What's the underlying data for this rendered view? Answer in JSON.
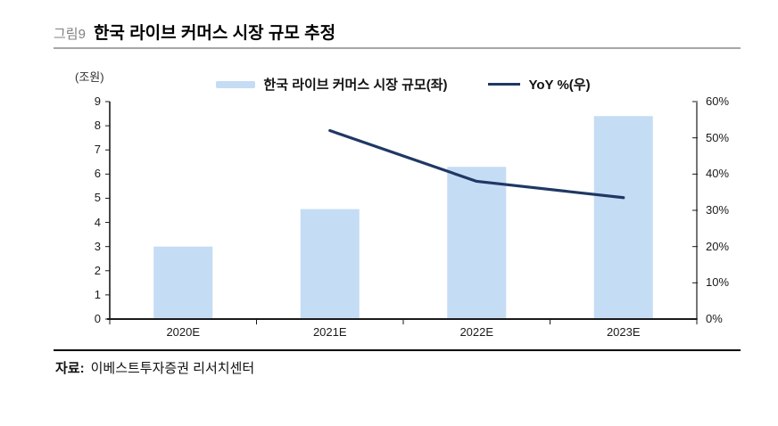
{
  "header": {
    "tag": "그림9",
    "title": "한국 라이브 커머스 시장 규모 추정"
  },
  "footer": {
    "source_prefix": "자료:",
    "source_text": "이베스트투자증권 리서치센터"
  },
  "colors": {
    "bar": "#C5DCF5",
    "line": "#1F3864",
    "title_rule": "#A6A6A6",
    "bottom_rule": "#000000",
    "axis": "#1A1A1A",
    "figure_tag_text": "#808080"
  },
  "chart_data": {
    "type": "combo",
    "title": "한국 라이브 커머스 시장 규모 추정",
    "categories": [
      "2020E",
      "2021E",
      "2022E",
      "2023E"
    ],
    "series": [
      {
        "name": "한국 라이브 커머스 시장 규모(좌)",
        "type": "bar",
        "axis": "left",
        "color": "#C5DCF5",
        "values": [
          3.0,
          4.55,
          6.3,
          8.4
        ]
      },
      {
        "name": "YoY %(우)",
        "type": "line",
        "axis": "right",
        "color": "#1F3864",
        "values": [
          null,
          52,
          38,
          33.5
        ]
      }
    ],
    "left_axis": {
      "unit": "(조원)",
      "min": 0,
      "max": 9,
      "step": 1
    },
    "right_axis": {
      "min": 0,
      "max": 60,
      "step": 10,
      "suffix": "%"
    },
    "grid": false,
    "legend_position": "top-center"
  }
}
